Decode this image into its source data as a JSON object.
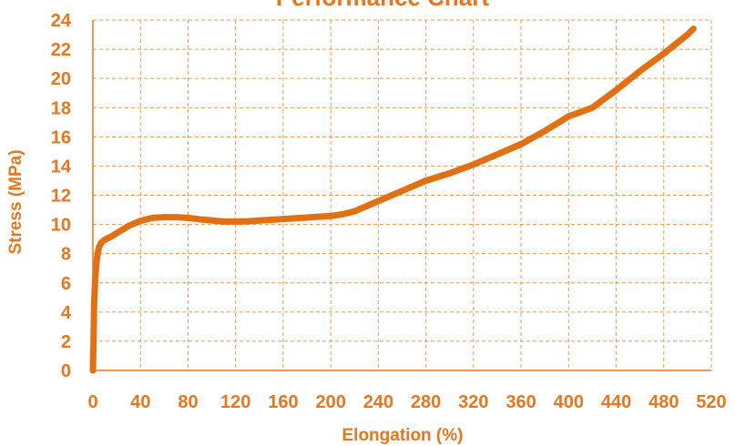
{
  "chart_data": {
    "type": "line",
    "title": "Performance Chart",
    "xlabel": "Elongation (%)",
    "ylabel": "Stress (MPa)",
    "xlim": [
      0,
      520
    ],
    "ylim": [
      0,
      24
    ],
    "x_ticks": [
      0,
      40,
      80,
      120,
      160,
      200,
      240,
      280,
      320,
      360,
      400,
      440,
      480,
      520
    ],
    "y_ticks": [
      0,
      2,
      4,
      6,
      8,
      10,
      12,
      14,
      16,
      18,
      20,
      22,
      24
    ],
    "grid": true,
    "grid_style": "dashed",
    "legend": "none",
    "colors": {
      "accent": "#E8761E",
      "line": "#E26F12",
      "grid": "#EE9A52"
    },
    "series": [
      {
        "x": [
          0,
          0.5,
          1,
          2,
          3,
          4,
          5,
          7,
          10,
          15,
          20,
          30,
          40,
          50,
          60,
          70,
          80,
          90,
          100,
          110,
          120,
          130,
          140,
          160,
          180,
          200,
          210,
          220,
          240,
          260,
          280,
          300,
          320,
          340,
          360,
          380,
          400,
          420,
          440,
          460,
          480,
          500,
          505
        ],
        "y": [
          0,
          2,
          4.5,
          6.3,
          7.4,
          8.0,
          8.4,
          8.75,
          8.95,
          9.15,
          9.4,
          9.9,
          10.25,
          10.45,
          10.5,
          10.5,
          10.45,
          10.35,
          10.28,
          10.2,
          10.2,
          10.22,
          10.27,
          10.37,
          10.47,
          10.58,
          10.7,
          10.9,
          11.6,
          12.3,
          13.0,
          13.5,
          14.1,
          14.8,
          15.5,
          16.4,
          17.4,
          18.0,
          19.2,
          20.5,
          21.7,
          23.0,
          23.4
        ]
      }
    ]
  }
}
